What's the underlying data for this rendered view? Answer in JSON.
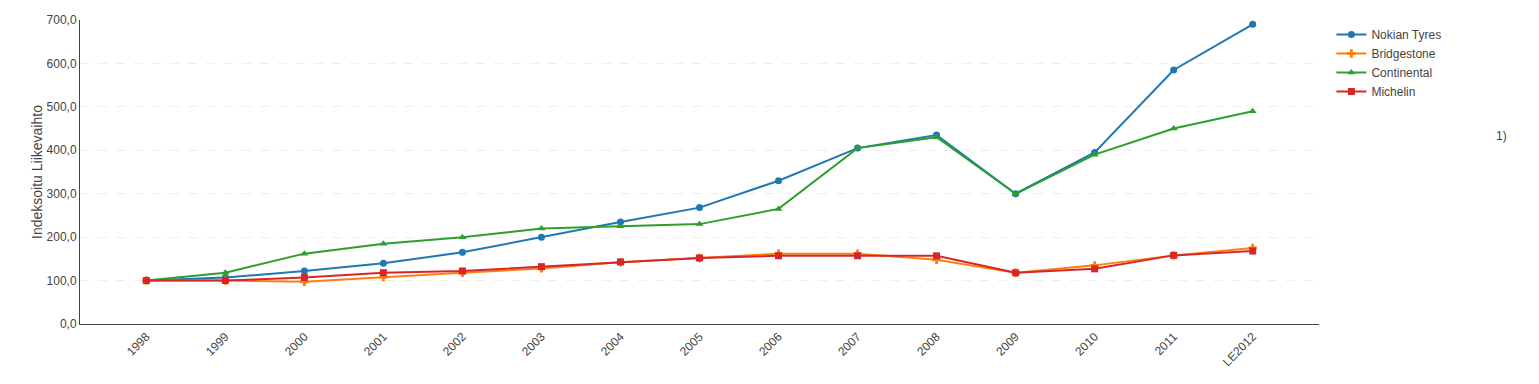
{
  "chart_data": {
    "type": "line",
    "ylabel": "Indeksoitu Liikevaihto",
    "categories": [
      "1998",
      "1999",
      "2000",
      "2001",
      "2002",
      "2003",
      "2004",
      "2005",
      "2006",
      "2007",
      "2008",
      "2009",
      "2010",
      "2011",
      "LE2012"
    ],
    "series": [
      {
        "name": "Nokian Tyres",
        "marker": "circle",
        "values": [
          100,
          107,
          122,
          140,
          165,
          200,
          235,
          268,
          330,
          405,
          435,
          300,
          395,
          585,
          690
        ]
      },
      {
        "name": "Bridgestone",
        "marker": "cross",
        "values": [
          100,
          100,
          97,
          108,
          118,
          128,
          142,
          152,
          162,
          162,
          148,
          118,
          135,
          158,
          175
        ]
      },
      {
        "name": "Continental",
        "marker": "triangle-up",
        "values": [
          100,
          118,
          162,
          185,
          200,
          220,
          225,
          230,
          265,
          405,
          430,
          300,
          390,
          450,
          490
        ]
      },
      {
        "name": "Michelin",
        "marker": "square",
        "values": [
          100,
          100,
          107,
          118,
          122,
          132,
          143,
          152,
          157,
          157,
          157,
          118,
          127,
          158,
          168
        ]
      }
    ],
    "ylim": [
      0,
      700
    ],
    "yticks": [
      {
        "value": 0,
        "label": "0,0"
      },
      {
        "value": 100,
        "label": "100,0"
      },
      {
        "value": 200,
        "label": "200,0"
      },
      {
        "value": 300,
        "label": "300,0"
      },
      {
        "value": 400,
        "label": "400,0"
      },
      {
        "value": 500,
        "label": "500,0"
      },
      {
        "value": 600,
        "label": "600,0"
      },
      {
        "value": 700,
        "label": "700,0"
      }
    ],
    "grid": true,
    "legend": "right",
    "annotation": "1)"
  }
}
